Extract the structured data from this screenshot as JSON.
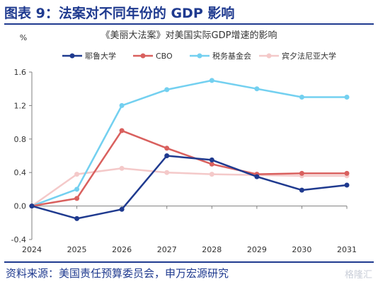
{
  "header": {
    "title": "图表 9：法案对不同年份的 GDP 影响"
  },
  "footer": {
    "source": "资料来源：美国责任预算委员会，申万宏源研究",
    "watermark": "格隆汇"
  },
  "chart_data": {
    "type": "line",
    "title": "《美丽大法案》对美国实际GDP增速的影响",
    "ylabel": "%",
    "xlabel": "",
    "x": [
      2024,
      2025,
      2026,
      2027,
      2028,
      2029,
      2030,
      2031
    ],
    "ylim": [
      -0.4,
      1.6
    ],
    "yticks": [
      "-0.4",
      "0.0",
      "0.4",
      "0.8",
      "1.2",
      "1.6"
    ],
    "grid": false,
    "legend": "top",
    "series": [
      {
        "name": "耶鲁大学",
        "color": "#1f3a8f",
        "values": [
          0.0,
          -0.15,
          -0.04,
          0.6,
          0.55,
          0.35,
          0.19,
          0.25
        ]
      },
      {
        "name": "CBO",
        "color": "#d9605e",
        "values": [
          0.0,
          0.09,
          0.9,
          0.69,
          0.5,
          0.38,
          0.39,
          0.39
        ]
      },
      {
        "name": "税务基金会",
        "color": "#73d0f0",
        "values": [
          0.0,
          0.2,
          1.2,
          1.39,
          1.5,
          1.4,
          1.3,
          1.3
        ]
      },
      {
        "name": "宾夕法尼亚大学",
        "color": "#f4c9c9",
        "values": [
          0.0,
          0.38,
          0.45,
          0.4,
          0.38,
          0.37,
          0.36,
          0.36
        ]
      }
    ]
  }
}
